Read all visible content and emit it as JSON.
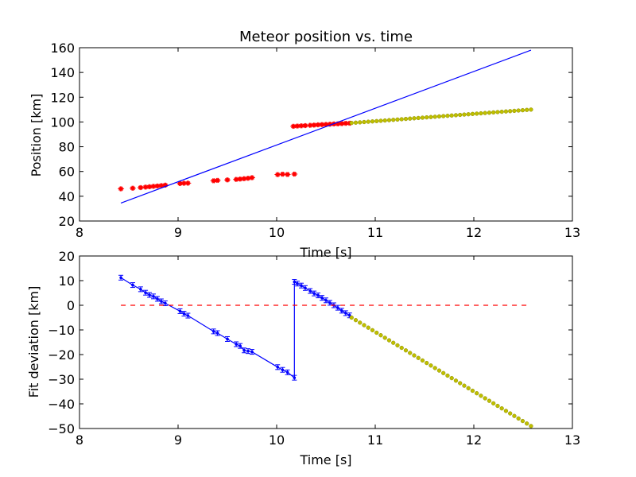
{
  "chart_data": [
    {
      "type": "scatter",
      "title": "Meteor position vs. time",
      "xlabel": "Time [s]",
      "ylabel": "Position [km]",
      "xlim": [
        8,
        13
      ],
      "ylim": [
        20,
        160
      ],
      "xticks": [
        "8",
        "9",
        "10",
        "11",
        "12",
        "13"
      ],
      "yticks": [
        "20",
        "40",
        "60",
        "80",
        "100",
        "120",
        "140",
        "160"
      ],
      "grid": false,
      "series": [
        {
          "kind": "points",
          "color": "#ff0000",
          "marker": "star",
          "points": [
            [
              8.42,
              46.0
            ],
            [
              8.54,
              46.5
            ],
            [
              8.62,
              47.0
            ],
            [
              8.67,
              47.4
            ],
            [
              8.71,
              47.7
            ],
            [
              8.75,
              48.0
            ],
            [
              8.79,
              48.3
            ],
            [
              8.83,
              48.6
            ],
            [
              8.87,
              49.0
            ],
            [
              9.02,
              50.3
            ],
            [
              9.06,
              50.5
            ],
            [
              9.1,
              50.6
            ],
            [
              9.36,
              52.5
            ],
            [
              9.4,
              52.8
            ],
            [
              9.5,
              53.2
            ],
            [
              9.59,
              53.6
            ],
            [
              9.63,
              53.9
            ],
            [
              9.67,
              54.2
            ],
            [
              9.71,
              54.5
            ],
            [
              9.75,
              55.0
            ],
            [
              10.01,
              57.5
            ],
            [
              10.06,
              57.8
            ],
            [
              10.11,
              57.6
            ],
            [
              10.18,
              57.9
            ],
            [
              10.17,
              96.5
            ],
            [
              10.21,
              96.7
            ],
            [
              10.25,
              96.9
            ],
            [
              10.29,
              97.1
            ],
            [
              10.34,
              97.3
            ],
            [
              10.38,
              97.5
            ],
            [
              10.42,
              97.7
            ],
            [
              10.46,
              97.9
            ],
            [
              10.5,
              98.0
            ],
            [
              10.54,
              98.2
            ],
            [
              10.58,
              98.4
            ],
            [
              10.62,
              98.5
            ],
            [
              10.66,
              98.7
            ],
            [
              10.7,
              98.9
            ],
            [
              10.74,
              99.0
            ]
          ]
        },
        {
          "kind": "points",
          "color": "#bfbf00",
          "marker": "dot",
          "x_start": 10.76,
          "x_end": 12.58,
          "y_start": 99.2,
          "y_end": 110.0,
          "count": 44
        },
        {
          "kind": "line",
          "color": "#0000ff",
          "points": [
            [
              8.42,
              34.5
            ],
            [
              12.58,
              158.0
            ]
          ]
        }
      ]
    },
    {
      "type": "line",
      "xlabel": "Time [s]",
      "ylabel": "Fit deviation [km]",
      "xlim": [
        8,
        13
      ],
      "ylim": [
        -50,
        20
      ],
      "xticks": [
        "8",
        "9",
        "10",
        "11",
        "12",
        "13"
      ],
      "yticks": [
        "20",
        "10",
        "0",
        "−10",
        "−20",
        "−30",
        "−40",
        "−50"
      ],
      "grid": false,
      "series": [
        {
          "kind": "line-errorbars",
          "color": "#0000ff",
          "points": [
            [
              8.42,
              11.2
            ],
            [
              8.54,
              8.2
            ],
            [
              8.62,
              6.5
            ],
            [
              8.67,
              5.1
            ],
            [
              8.71,
              4.2
            ],
            [
              8.75,
              3.6
            ],
            [
              8.79,
              2.6
            ],
            [
              8.83,
              1.6
            ],
            [
              8.87,
              0.8
            ],
            [
              9.02,
              -2.4
            ],
            [
              9.06,
              -3.4
            ],
            [
              9.1,
              -4.2
            ],
            [
              9.36,
              -10.6
            ],
            [
              9.4,
              -11.3
            ],
            [
              9.5,
              -13.7
            ],
            [
              9.59,
              -15.8
            ],
            [
              9.63,
              -16.5
            ],
            [
              9.67,
              -18.3
            ],
            [
              9.71,
              -18.6
            ],
            [
              9.75,
              -18.9
            ],
            [
              10.01,
              -25.1
            ],
            [
              10.06,
              -26.2
            ],
            [
              10.11,
              -27.2
            ],
            [
              10.18,
              -29.4
            ],
            [
              10.18,
              9.5
            ],
            [
              10.21,
              8.8
            ],
            [
              10.25,
              8.0
            ],
            [
              10.29,
              7.0
            ],
            [
              10.34,
              5.8
            ],
            [
              10.38,
              4.8
            ],
            [
              10.42,
              4.0
            ],
            [
              10.46,
              3.0
            ],
            [
              10.5,
              2.0
            ],
            [
              10.54,
              1.0
            ],
            [
              10.58,
              0.0
            ],
            [
              10.62,
              -1.0
            ],
            [
              10.66,
              -2.2
            ],
            [
              10.7,
              -3.2
            ],
            [
              10.74,
              -4.1
            ]
          ]
        },
        {
          "kind": "points",
          "color": "#bfbf00",
          "marker": "dot",
          "x_start": 10.76,
          "x_end": 12.58,
          "y_start": -5.0,
          "y_end": -49.0,
          "count": 44
        },
        {
          "kind": "hline-dashed",
          "color": "#ff0000",
          "y": 0,
          "x_range": [
            8.42,
            12.55
          ]
        }
      ]
    }
  ]
}
